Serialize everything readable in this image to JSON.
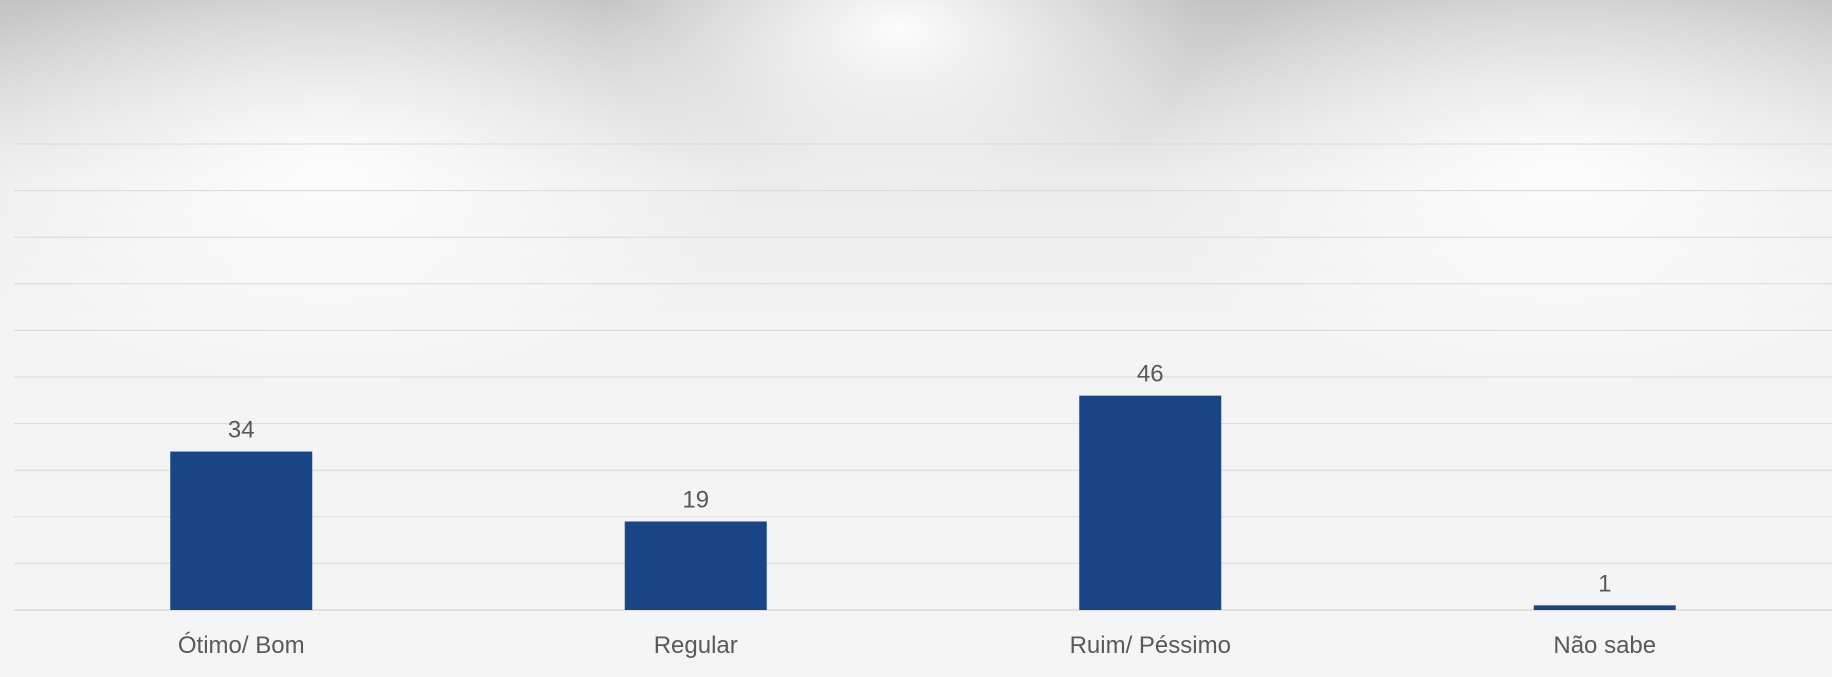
{
  "chart_data": {
    "type": "bar",
    "categories": [
      "Ótimo/ Bom",
      "Regular",
      "Ruim/ Péssimo",
      "Não sabe"
    ],
    "values": [
      34,
      19,
      46,
      1
    ],
    "data_labels": [
      "34",
      "19",
      "46",
      "1"
    ],
    "title": "",
    "xlabel": "",
    "ylabel": "",
    "ylim": [
      0,
      100
    ],
    "grid": true,
    "legend": "none",
    "bar_color": "#1a4688",
    "gridline_color": "#d9d9d9",
    "label_color": "#595959"
  }
}
